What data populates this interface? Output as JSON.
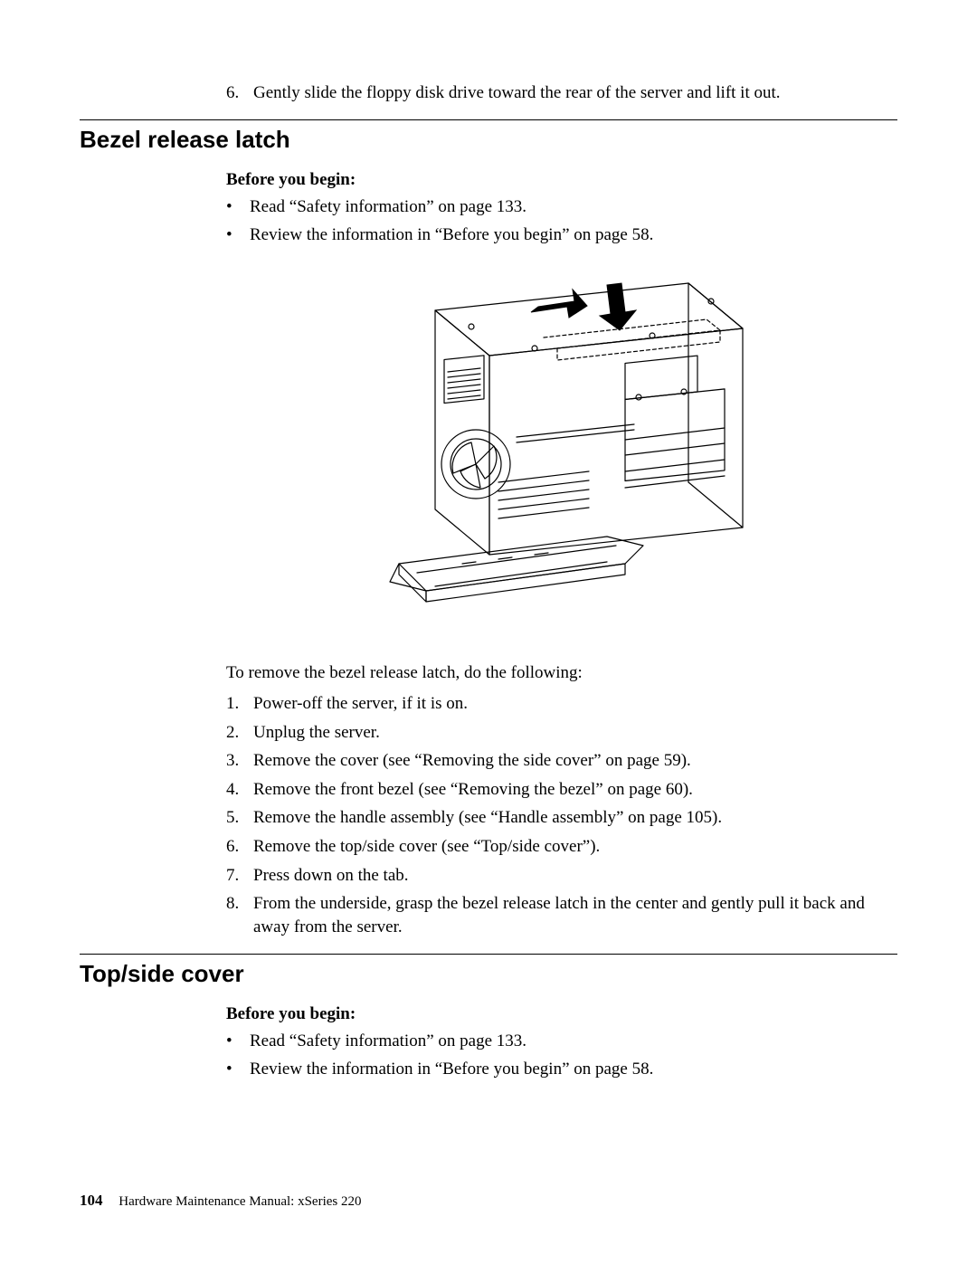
{
  "top_step": {
    "num": "6.",
    "text": "Gently slide the floppy disk drive toward the rear of the server and lift it out."
  },
  "section1": {
    "heading": "Bezel release latch",
    "byb_label": "Before you begin:",
    "byb_items": [
      "Read “Safety information” on page 133.",
      "Review the information in “Before you begin” on page 58."
    ],
    "lead_in": "To remove the bezel release latch, do the following:",
    "steps": [
      {
        "num": "1.",
        "text": "Power-off the server, if it is on."
      },
      {
        "num": "2.",
        "text": "Unplug the server."
      },
      {
        "num": "3.",
        "text": "Remove the cover (see “Removing the side cover” on page 59)."
      },
      {
        "num": "4.",
        "text": "Remove the front bezel (see “Removing the bezel” on page 60)."
      },
      {
        "num": "5.",
        "text": "Remove the handle assembly (see “Handle assembly” on page 105)."
      },
      {
        "num": "6.",
        "text": "Remove the top/side cover (see “Top/side cover”)."
      },
      {
        "num": "7.",
        "text": "Press down on the tab."
      },
      {
        "num": "8.",
        "text": "From the underside, grasp the bezel release latch in the center and gently pull it back and away from the server."
      }
    ]
  },
  "section2": {
    "heading": "Top/side cover",
    "byb_label": "Before you begin:",
    "byb_items": [
      "Read “Safety information” on page 133.",
      "Review the information in “Before you begin” on page 58."
    ]
  },
  "footer": {
    "page_num": "104",
    "title": "Hardware Maintenance Manual: xSeries 220"
  },
  "figure": {
    "stroke": "#000000",
    "fill_arrow": "#000000",
    "bg": "#ffffff"
  }
}
